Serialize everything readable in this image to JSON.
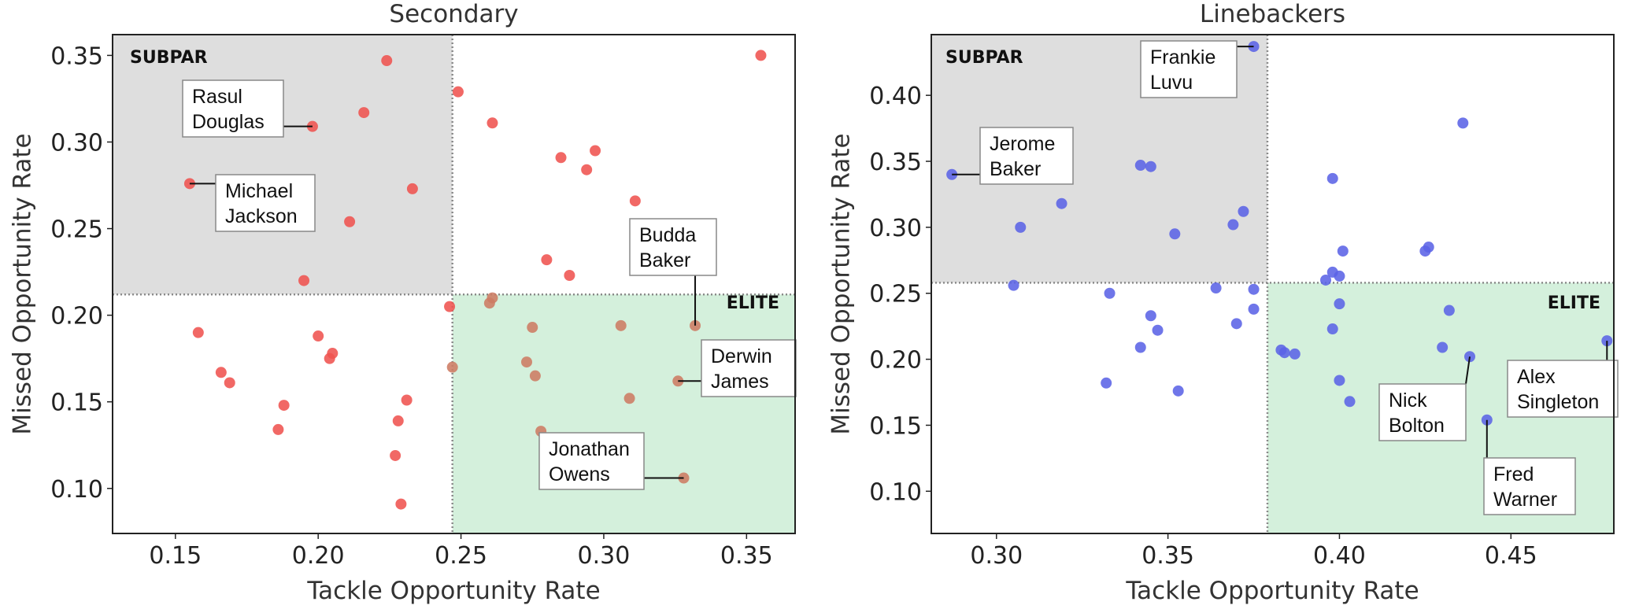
{
  "chart_data": [
    {
      "type": "scatter",
      "title": "Secondary",
      "xlabel": "Tackle Opportunity Rate",
      "ylabel": "Missed Opportunity Rate",
      "xlim": [
        0.128,
        0.367
      ],
      "ylim": [
        0.074,
        0.362
      ],
      "xticks": [
        0.15,
        0.2,
        0.25,
        0.3,
        0.35
      ],
      "xtick_labels": [
        "0.15",
        "0.20",
        "0.25",
        "0.30",
        "0.35"
      ],
      "yticks": [
        0.1,
        0.15,
        0.2,
        0.25,
        0.3,
        0.35
      ],
      "ytick_labels": [
        "0.10",
        "0.15",
        "0.20",
        "0.25",
        "0.30",
        "0.35"
      ],
      "x_threshold": 0.247,
      "y_threshold": 0.212,
      "quadrants": {
        "subpar": "SUBPAR",
        "elite": "ELITE"
      },
      "marker_color": "#ef5350",
      "elite_marker_color": "#cd7b63",
      "subpar_fill": "#dedede",
      "elite_fill": "#d4f0dc",
      "points": [
        [
          0.224,
          0.347
        ],
        [
          0.249,
          0.329
        ],
        [
          0.355,
          0.35
        ],
        [
          0.216,
          0.317
        ],
        [
          0.198,
          0.309
        ],
        [
          0.261,
          0.311
        ],
        [
          0.297,
          0.295
        ],
        [
          0.285,
          0.291
        ],
        [
          0.294,
          0.284
        ],
        [
          0.155,
          0.276
        ],
        [
          0.233,
          0.273
        ],
        [
          0.311,
          0.266
        ],
        [
          0.211,
          0.254
        ],
        [
          0.28,
          0.232
        ],
        [
          0.288,
          0.223
        ],
        [
          0.195,
          0.22
        ],
        [
          0.261,
          0.21
        ],
        [
          0.26,
          0.207
        ],
        [
          0.246,
          0.205
        ],
        [
          0.158,
          0.19
        ],
        [
          0.2,
          0.188
        ],
        [
          0.275,
          0.193
        ],
        [
          0.306,
          0.194
        ],
        [
          0.332,
          0.194
        ],
        [
          0.205,
          0.178
        ],
        [
          0.204,
          0.175
        ],
        [
          0.273,
          0.173
        ],
        [
          0.247,
          0.17
        ],
        [
          0.166,
          0.167
        ],
        [
          0.276,
          0.165
        ],
        [
          0.326,
          0.162
        ],
        [
          0.169,
          0.161
        ],
        [
          0.309,
          0.152
        ],
        [
          0.231,
          0.151
        ],
        [
          0.188,
          0.148
        ],
        [
          0.228,
          0.139
        ],
        [
          0.186,
          0.134
        ],
        [
          0.278,
          0.133
        ],
        [
          0.227,
          0.119
        ],
        [
          0.328,
          0.106
        ],
        [
          0.229,
          0.091
        ]
      ],
      "callouts": [
        {
          "lines": [
            "Rasul",
            "Douglas"
          ],
          "point": [
            0.198,
            0.309
          ]
        },
        {
          "lines": [
            "Michael",
            "Jackson"
          ],
          "point": [
            0.155,
            0.276
          ]
        },
        {
          "lines": [
            "Budda",
            "Baker"
          ],
          "point": [
            0.332,
            0.194
          ]
        },
        {
          "lines": [
            "Derwin",
            "James"
          ],
          "point": [
            0.326,
            0.162
          ]
        },
        {
          "lines": [
            "Jonathan",
            "Owens"
          ],
          "point": [
            0.328,
            0.106
          ]
        }
      ]
    },
    {
      "type": "scatter",
      "title": "Linebackers",
      "xlabel": "Tackle Opportunity Rate",
      "ylabel": "Missed Opportunity Rate",
      "xlim": [
        0.281,
        0.48
      ],
      "ylim": [
        0.068,
        0.446
      ],
      "xticks": [
        0.3,
        0.35,
        0.4,
        0.45
      ],
      "xtick_labels": [
        "0.30",
        "0.35",
        "0.40",
        "0.45"
      ],
      "yticks": [
        0.1,
        0.15,
        0.2,
        0.25,
        0.3,
        0.35,
        0.4
      ],
      "ytick_labels": [
        "0.10",
        "0.15",
        "0.20",
        "0.25",
        "0.30",
        "0.35",
        "0.40"
      ],
      "x_threshold": 0.379,
      "y_threshold": 0.258,
      "quadrants": {
        "subpar": "SUBPAR",
        "elite": "ELITE"
      },
      "marker_color": "#5b63e6",
      "elite_marker_color": "#5b63e6",
      "subpar_fill": "#dedede",
      "elite_fill": "#d4f0dc",
      "points": [
        [
          0.375,
          0.437
        ],
        [
          0.436,
          0.379
        ],
        [
          0.287,
          0.34
        ],
        [
          0.342,
          0.347
        ],
        [
          0.345,
          0.346
        ],
        [
          0.398,
          0.337
        ],
        [
          0.372,
          0.312
        ],
        [
          0.319,
          0.318
        ],
        [
          0.307,
          0.3
        ],
        [
          0.369,
          0.302
        ],
        [
          0.352,
          0.295
        ],
        [
          0.426,
          0.285
        ],
        [
          0.425,
          0.282
        ],
        [
          0.401,
          0.282
        ],
        [
          0.398,
          0.266
        ],
        [
          0.4,
          0.263
        ],
        [
          0.396,
          0.26
        ],
        [
          0.305,
          0.256
        ],
        [
          0.364,
          0.254
        ],
        [
          0.375,
          0.253
        ],
        [
          0.333,
          0.25
        ],
        [
          0.4,
          0.242
        ],
        [
          0.375,
          0.238
        ],
        [
          0.432,
          0.237
        ],
        [
          0.345,
          0.233
        ],
        [
          0.37,
          0.227
        ],
        [
          0.398,
          0.223
        ],
        [
          0.347,
          0.222
        ],
        [
          0.478,
          0.214
        ],
        [
          0.342,
          0.209
        ],
        [
          0.43,
          0.209
        ],
        [
          0.383,
          0.207
        ],
        [
          0.384,
          0.205
        ],
        [
          0.387,
          0.204
        ],
        [
          0.438,
          0.202
        ],
        [
          0.4,
          0.184
        ],
        [
          0.332,
          0.182
        ],
        [
          0.353,
          0.176
        ],
        [
          0.403,
          0.168
        ],
        [
          0.443,
          0.154
        ]
      ],
      "callouts": [
        {
          "lines": [
            "Frankie",
            "Luvu"
          ],
          "point": [
            0.375,
            0.437
          ]
        },
        {
          "lines": [
            "Jerome",
            "Baker"
          ],
          "point": [
            0.287,
            0.34
          ]
        },
        {
          "lines": [
            "Alex",
            "Singleton"
          ],
          "point": [
            0.478,
            0.214
          ]
        },
        {
          "lines": [
            "Nick",
            "Bolton"
          ],
          "point": [
            0.438,
            0.202
          ]
        },
        {
          "lines": [
            "Fred",
            "Warner"
          ],
          "point": [
            0.443,
            0.154
          ]
        }
      ]
    }
  ]
}
